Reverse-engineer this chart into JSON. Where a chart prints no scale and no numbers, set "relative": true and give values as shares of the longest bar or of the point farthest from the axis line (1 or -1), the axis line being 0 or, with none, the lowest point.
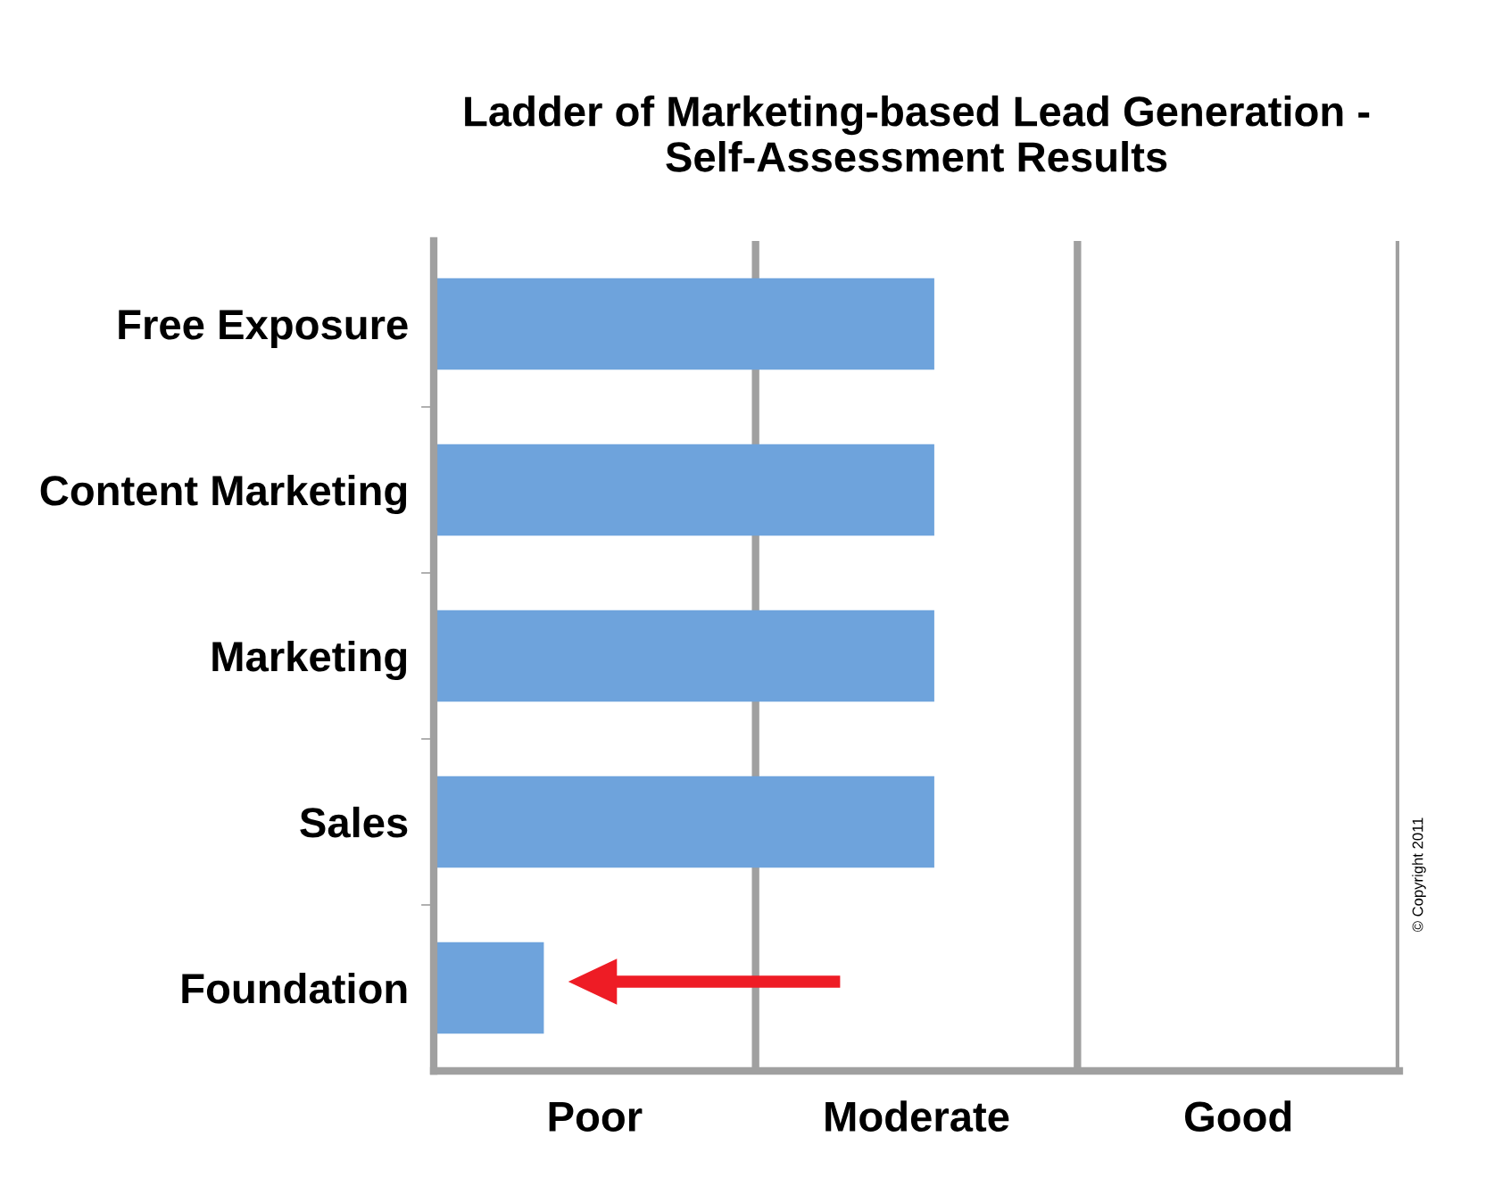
{
  "chart_data": {
    "type": "bar",
    "orientation": "horizontal",
    "relative": true,
    "title": "Ladder of Marketing-based Lead Generation -\nSelf-Assessment Results",
    "categories": [
      "Free Exposure",
      "Content Marketing",
      "Marketing",
      "Sales",
      "Foundation"
    ],
    "values": [
      1,
      1,
      1,
      1,
      0.22
    ],
    "color": "#6ea3dc",
    "ref_lines": [
      {
        "axis": "x",
        "value": 0.643,
        "label": "Poor",
        "color": "#a0a0a0"
      },
      {
        "axis": "x",
        "value": 1.286,
        "label": "Moderate",
        "color": "#a0a0a0"
      },
      {
        "axis": "x",
        "value": 1.929,
        "label": "Good",
        "color": "#a0a0a0"
      }
    ],
    "annotations": [
      "© Copyright 2011"
    ],
    "grid": false
  }
}
